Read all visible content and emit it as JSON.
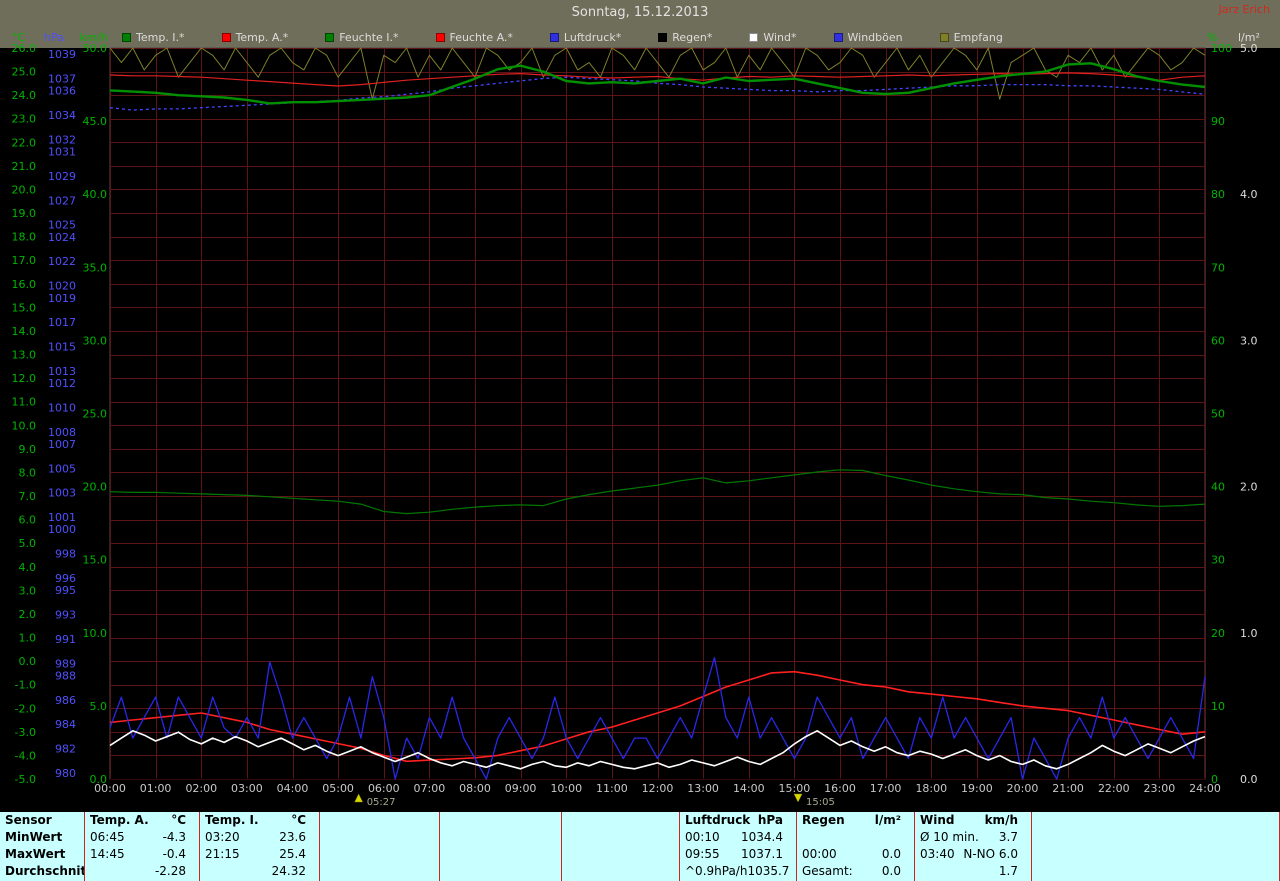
{
  "header": {
    "title": "Sonntag, 15.12.2013",
    "author": "Jarz Erich"
  },
  "legend": {
    "left_units": [
      {
        "text": "°C",
        "color": "#00b400"
      },
      {
        "text": "hPa",
        "color": "#5050ff"
      },
      {
        "text": "km/h",
        "color": "#00b400"
      }
    ],
    "right_units": [
      {
        "text": "%",
        "color": "#00b400"
      },
      {
        "text": "l/m²",
        "color": "#dcdcdc"
      }
    ],
    "items": [
      {
        "id": "temp-i",
        "label": "Temp. I.*",
        "color": "#008000"
      },
      {
        "id": "temp-a",
        "label": "Temp. A.*",
        "color": "#ff0000"
      },
      {
        "id": "feuchte-i",
        "label": "Feuchte I.*",
        "color": "#008000"
      },
      {
        "id": "feuchte-a",
        "label": "Feuchte A.*",
        "color": "#ff0000"
      },
      {
        "id": "luftdruck",
        "label": "Luftdruck*",
        "color": "#3030e0"
      },
      {
        "id": "regen",
        "label": "Regen*",
        "color": "#000000"
      },
      {
        "id": "wind",
        "label": "Wind*",
        "color": "#ffffff"
      },
      {
        "id": "windboeen",
        "label": "Windböen",
        "color": "#3030e0"
      },
      {
        "id": "empfang",
        "label": "Empfang",
        "color": "#80802a"
      }
    ]
  },
  "chart_data": {
    "type": "line",
    "grid_color": "#5c1414",
    "x_labels": [
      "00:00",
      "01:00",
      "02:00",
      "03:00",
      "04:00",
      "05:00",
      "06:00",
      "07:00",
      "08:00",
      "09:00",
      "10:00",
      "11:00",
      "12:00",
      "13:00",
      "14:00",
      "15:00",
      "16:00",
      "17:00",
      "18:00",
      "19:00",
      "20:00",
      "21:00",
      "22:00",
      "23:00",
      "24:00"
    ],
    "axes": [
      {
        "id": "celsius",
        "unit": "°C",
        "color": "#00b400",
        "values": [
          26,
          25,
          24,
          23,
          22,
          21,
          20,
          19,
          18,
          17,
          16,
          15,
          14,
          13,
          12,
          11,
          10,
          9,
          8,
          7,
          6,
          5,
          4,
          3,
          2,
          1,
          0,
          -1,
          -2,
          -3,
          -4,
          -5
        ]
      },
      {
        "id": "hpa",
        "unit": "hPa",
        "color": "#5050ff",
        "values": [
          1039,
          1037,
          1036,
          1034,
          1032,
          1031,
          1029,
          1027,
          1025,
          1024,
          1022,
          1020,
          1019,
          1017,
          1015,
          1013,
          1012,
          1010,
          1008,
          1007,
          1005,
          1003,
          1001,
          1000,
          998,
          996,
          995,
          993,
          991,
          989,
          988,
          986,
          984,
          982,
          980
        ]
      },
      {
        "id": "kmh",
        "unit": "km/h",
        "color": "#00b400",
        "values": [
          50,
          45,
          40,
          35,
          30,
          25,
          20,
          15,
          10,
          5,
          0
        ]
      },
      {
        "id": "percent",
        "unit": "%",
        "color": "#00b400",
        "values": [
          100,
          90,
          80,
          70,
          60,
          50,
          40,
          30,
          20,
          10,
          0
        ]
      },
      {
        "id": "lm2",
        "unit": "l/m²",
        "color": "#dcdcdc",
        "values": [
          5,
          4,
          3,
          2,
          1,
          0
        ]
      }
    ],
    "sun_markers": [
      {
        "icon": "sunrise",
        "label": "05:27",
        "hour": 5.45
      },
      {
        "icon": "sunset",
        "label": "15:05",
        "hour": 15.08
      }
    ],
    "series": [
      {
        "id": "empfang",
        "name": "Empfang",
        "scale": "pct",
        "color": "#80802a",
        "width": 1,
        "start_hour": 0,
        "step_hours": 0.25,
        "values": [
          100,
          98,
          100,
          97,
          99,
          100,
          96,
          98,
          100,
          99,
          97,
          100,
          98,
          96,
          99,
          100,
          98,
          97,
          100,
          99,
          96,
          98,
          100,
          93,
          99,
          98,
          100,
          96,
          99,
          97,
          100,
          98,
          96,
          100,
          99,
          97,
          98,
          100,
          96,
          99,
          100,
          97,
          98,
          96,
          100,
          99,
          97,
          100,
          98,
          96,
          99,
          100,
          97,
          98,
          100,
          96,
          99,
          97,
          100,
          98,
          96,
          100,
          99,
          97,
          98,
          100,
          99,
          96,
          98,
          100,
          97,
          99,
          96,
          98,
          100,
          99,
          97,
          100,
          93,
          98,
          99,
          100,
          97,
          96,
          99,
          98,
          100,
          97,
          99,
          96,
          98,
          100,
          99,
          97,
          98,
          100,
          99
        ]
      },
      {
        "id": "luftdruck",
        "name": "Luftdruck",
        "scale": "hpa",
        "color": "#4444ff",
        "width": 1.3,
        "dash": "3 3",
        "start_hour": 0,
        "step_hours": 0.5,
        "values": [
          1034.6,
          1034.4,
          1034.5,
          1034.5,
          1034.6,
          1034.7,
          1034.8,
          1034.9,
          1035.0,
          1035.1,
          1035.2,
          1035.4,
          1035.5,
          1035.7,
          1035.9,
          1036.2,
          1036.4,
          1036.6,
          1036.8,
          1037.0,
          1037.1,
          1037.0,
          1036.9,
          1036.8,
          1036.6,
          1036.5,
          1036.3,
          1036.2,
          1036.1,
          1036.0,
          1036.0,
          1035.9,
          1036.0,
          1036.0,
          1036.1,
          1036.2,
          1036.3,
          1036.4,
          1036.4,
          1036.5,
          1036.5,
          1036.5,
          1036.4,
          1036.4,
          1036.3,
          1036.2,
          1036.1,
          1035.9,
          1035.7
        ]
      },
      {
        "id": "feuchte_a",
        "name": "Feuchte A.",
        "scale": "pct",
        "color": "#e02020",
        "width": 1.2,
        "start_hour": 0,
        "step_hours": 0.5,
        "values": [
          96.3,
          96.2,
          96.2,
          96.1,
          96.0,
          95.8,
          95.6,
          95.4,
          95.2,
          95.0,
          94.8,
          95.0,
          95.3,
          95.6,
          95.8,
          96.0,
          96.2,
          96.4,
          96.5,
          96.3,
          96.2,
          96.0,
          95.9,
          96.0,
          96.1,
          95.8,
          95.6,
          95.9,
          96.1,
          96.0,
          96.2,
          96.1,
          96.0,
          96.1,
          96.2,
          96.3,
          96.2,
          96.3,
          96.4,
          96.5,
          96.4,
          96.5,
          96.6,
          96.5,
          96.3,
          96.0,
          95.6,
          96.0,
          96.2
        ]
      },
      {
        "id": "feuchte_i",
        "name": "Feuchte I.",
        "scale": "pct",
        "color": "#007800",
        "width": 1.2,
        "start_hour": 0,
        "step_hours": 0.5,
        "values": [
          39.3,
          39.2,
          39.2,
          39.1,
          39.0,
          38.9,
          38.8,
          38.6,
          38.4,
          38.2,
          38.0,
          37.6,
          36.6,
          36.3,
          36.5,
          36.9,
          37.2,
          37.4,
          37.5,
          37.4,
          38.3,
          38.9,
          39.4,
          39.8,
          40.2,
          40.8,
          41.2,
          40.5,
          40.8,
          41.2,
          41.6,
          42.0,
          42.3,
          42.2,
          41.5,
          40.9,
          40.2,
          39.7,
          39.3,
          39.0,
          38.9,
          38.5,
          38.3,
          38.0,
          37.8,
          37.5,
          37.3,
          37.4,
          37.6
        ]
      },
      {
        "id": "regen",
        "name": "Regen",
        "scale": "lm2",
        "color": "#000000",
        "width": 1,
        "start_hour": 0,
        "step_hours": 24,
        "values": [
          0,
          0
        ]
      },
      {
        "id": "temp_a",
        "name": "Temp. A.",
        "scale": "c",
        "color": "#ff2020",
        "width": 1.6,
        "start_hour": 0,
        "step_hours": 0.5,
        "values": [
          -2.6,
          -2.5,
          -2.4,
          -2.3,
          -2.2,
          -2.4,
          -2.6,
          -2.9,
          -3.1,
          -3.3,
          -3.5,
          -3.7,
          -4.0,
          -4.25,
          -4.2,
          -4.15,
          -4.1,
          -4.0,
          -3.8,
          -3.6,
          -3.3,
          -3.0,
          -2.8,
          -2.5,
          -2.2,
          -1.9,
          -1.5,
          -1.1,
          -0.8,
          -0.5,
          -0.45,
          -0.6,
          -0.8,
          -1.0,
          -1.1,
          -1.3,
          -1.4,
          -1.5,
          -1.6,
          -1.75,
          -1.9,
          -2.0,
          -2.1,
          -2.3,
          -2.5,
          -2.7,
          -2.9,
          -3.1,
          -3.0
        ]
      },
      {
        "id": "windboeen",
        "name": "Windböen",
        "scale": "kmh",
        "color": "#2828e8",
        "width": 1.3,
        "start_hour": 0,
        "step_hours": 0.25,
        "values": [
          3.5,
          5.6,
          2.8,
          4.2,
          5.6,
          2.8,
          5.6,
          4.2,
          2.8,
          5.6,
          3.5,
          2.8,
          4.2,
          2.8,
          8.0,
          5.6,
          2.8,
          4.2,
          2.8,
          1.4,
          2.8,
          5.6,
          2.8,
          7.0,
          4.2,
          0.0,
          2.8,
          1.4,
          4.2,
          2.8,
          5.6,
          2.8,
          1.4,
          0.0,
          2.8,
          4.2,
          2.8,
          1.4,
          2.8,
          5.6,
          2.8,
          1.4,
          2.8,
          4.2,
          2.8,
          1.4,
          2.8,
          2.8,
          1.4,
          2.8,
          4.2,
          2.8,
          5.6,
          8.3,
          4.2,
          2.8,
          5.6,
          2.8,
          4.2,
          2.8,
          1.4,
          2.8,
          5.6,
          4.2,
          2.8,
          4.2,
          1.4,
          2.8,
          4.2,
          2.8,
          1.4,
          4.2,
          2.8,
          5.6,
          2.8,
          4.2,
          2.8,
          1.4,
          2.8,
          4.2,
          0.0,
          2.8,
          1.4,
          0.0,
          2.8,
          4.2,
          2.8,
          5.6,
          2.8,
          4.2,
          2.8,
          1.4,
          2.8,
          4.2,
          2.8,
          1.4,
          7.0
        ]
      },
      {
        "id": "wind",
        "name": "Wind",
        "scale": "kmh",
        "color": "#ffffff",
        "width": 1.6,
        "start_hour": 0,
        "step_hours": 0.25,
        "values": [
          2.3,
          2.8,
          3.3,
          3.0,
          2.6,
          2.9,
          3.2,
          2.7,
          2.4,
          2.8,
          2.5,
          2.9,
          2.6,
          2.2,
          2.5,
          2.8,
          2.4,
          2.0,
          2.3,
          1.9,
          1.6,
          1.9,
          2.2,
          1.8,
          1.5,
          1.2,
          1.5,
          1.8,
          1.4,
          1.1,
          0.9,
          1.2,
          1.0,
          0.8,
          1.1,
          0.9,
          0.7,
          1.0,
          1.2,
          0.9,
          0.8,
          1.1,
          0.9,
          1.2,
          1.0,
          0.8,
          0.7,
          0.9,
          1.1,
          0.8,
          1.0,
          1.3,
          1.1,
          0.9,
          1.2,
          1.5,
          1.2,
          1.0,
          1.4,
          1.8,
          2.4,
          2.9,
          3.3,
          2.8,
          2.3,
          2.6,
          2.2,
          1.9,
          2.2,
          1.8,
          1.6,
          1.9,
          1.7,
          1.4,
          1.7,
          2.0,
          1.6,
          1.3,
          1.6,
          1.2,
          1.0,
          1.3,
          0.9,
          0.7,
          1.0,
          1.4,
          1.8,
          2.3,
          1.9,
          1.6,
          2.0,
          2.4,
          2.1,
          1.8,
          2.2,
          2.6,
          2.9
        ]
      },
      {
        "id": "temp_i",
        "name": "Temp. I.",
        "scale": "c",
        "color": "#009000",
        "width": 2.4,
        "start_hour": 0,
        "step_hours": 0.5,
        "values": [
          24.2,
          24.15,
          24.1,
          24.0,
          23.95,
          23.9,
          23.8,
          23.65,
          23.7,
          23.7,
          23.75,
          23.8,
          23.85,
          23.9,
          24.0,
          24.35,
          24.7,
          25.1,
          25.25,
          25.0,
          24.6,
          24.5,
          24.55,
          24.5,
          24.6,
          24.7,
          24.5,
          24.75,
          24.6,
          24.65,
          24.7,
          24.5,
          24.3,
          24.1,
          24.05,
          24.1,
          24.3,
          24.5,
          24.65,
          24.8,
          24.9,
          25.0,
          25.3,
          25.35,
          25.1,
          24.8,
          24.6,
          24.45,
          24.35
        ]
      }
    ]
  },
  "stats_table": {
    "row_headers": [
      "Sensor",
      "MinWert",
      "MaxWert",
      "Durchschnitt"
    ],
    "columns": [
      {
        "id": "temp-a",
        "title": "Temp. A.",
        "unit": "°C",
        "rows": [
          [
            "06:45",
            "-4.3"
          ],
          [
            "14:45",
            "-0.4"
          ],
          [
            "",
            "-2.28"
          ]
        ]
      },
      {
        "id": "temp-i",
        "title": "Temp. I.",
        "unit": "°C",
        "rows": [
          [
            "03:20",
            "23.6"
          ],
          [
            "21:15",
            "25.4"
          ],
          [
            "",
            "24.32"
          ]
        ]
      },
      {
        "id": "empty-1",
        "title": "",
        "unit": "",
        "rows": [
          [
            "",
            ""
          ],
          [
            "",
            ""
          ],
          [
            "",
            ""
          ]
        ]
      },
      {
        "id": "empty-2",
        "title": "",
        "unit": "",
        "rows": [
          [
            "",
            ""
          ],
          [
            "",
            ""
          ],
          [
            "",
            ""
          ]
        ]
      },
      {
        "id": "empty-3",
        "title": "",
        "unit": "",
        "rows": [
          [
            "",
            ""
          ],
          [
            "",
            ""
          ],
          [
            "",
            ""
          ]
        ]
      },
      {
        "id": "luftdruck",
        "title": "Luftdruck",
        "unit": "hPa",
        "rows": [
          [
            "00:10",
            "1034.4"
          ],
          [
            "09:55",
            "1037.1"
          ],
          [
            "^0.9hPa/h",
            "1035.7"
          ]
        ]
      },
      {
        "id": "regen",
        "title": "Regen",
        "unit": "l/m²",
        "rows": [
          [
            "",
            ""
          ],
          [
            "00:00",
            "0.0"
          ],
          [
            "Gesamt:",
            "0.0"
          ]
        ]
      },
      {
        "id": "wind",
        "title": "Wind",
        "unit": "km/h",
        "rows": [
          [
            "Ø 10 min.",
            "3.7"
          ],
          [
            "03:40",
            "N-NO 6.0"
          ],
          [
            "",
            "1.7"
          ]
        ]
      },
      {
        "id": "empty-4",
        "title": "",
        "unit": "",
        "rows": [
          [
            "",
            ""
          ],
          [
            "",
            ""
          ],
          [
            "",
            ""
          ]
        ]
      }
    ]
  }
}
